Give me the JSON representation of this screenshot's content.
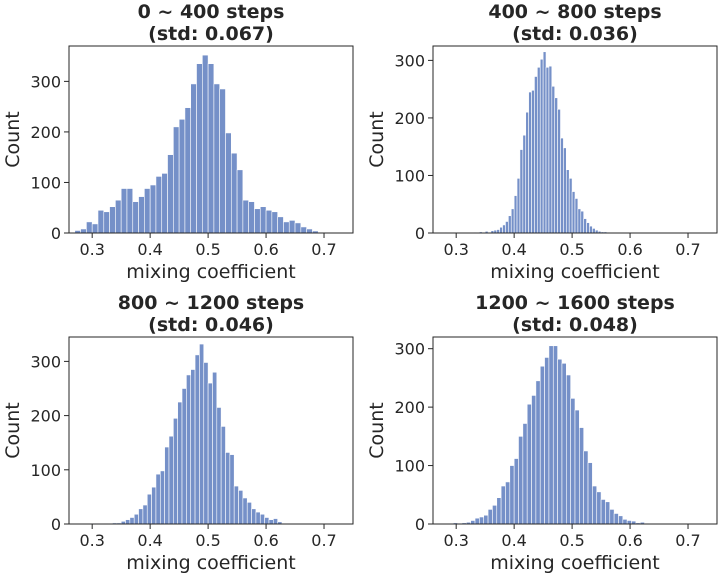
{
  "colors": {
    "bar": "#7590c8",
    "text": "#262626",
    "background": "#ffffff"
  },
  "chart_data": [
    {
      "type": "bar",
      "title": "0 ~ 400 steps",
      "subtitle": "(std: 0.067)",
      "xlabel": "mixing coefficient",
      "ylabel": "Count",
      "xlim": [
        0.26,
        0.75
      ],
      "ylim": [
        0,
        370
      ],
      "xticks": [
        0.3,
        0.4,
        0.5,
        0.6,
        0.7
      ],
      "xtick_labels": [
        "0.3",
        "0.4",
        "0.5",
        "0.6",
        "0.7"
      ],
      "yticks": [
        0,
        100,
        200,
        300
      ],
      "ytick_labels": [
        "0",
        "100",
        "200",
        "300"
      ],
      "bin_start": 0.27,
      "bin_width": 0.01,
      "values": [
        5,
        8,
        22,
        18,
        45,
        42,
        52,
        65,
        88,
        88,
        62,
        72,
        88,
        95,
        112,
        118,
        155,
        210,
        225,
        248,
        295,
        335,
        352,
        335,
        295,
        285,
        198,
        158,
        125,
        65,
        62,
        48,
        52,
        45,
        42,
        32,
        22,
        25,
        20,
        12,
        8,
        4
      ]
    },
    {
      "type": "bar",
      "title": "400 ~ 800 steps",
      "subtitle": "(std: 0.036)",
      "xlabel": "mixing coefficient",
      "ylabel": "Count",
      "xlim": [
        0.26,
        0.75
      ],
      "ylim": [
        0,
        325
      ],
      "xticks": [
        0.3,
        0.4,
        0.5,
        0.6,
        0.7
      ],
      "xtick_labels": [
        "0.3",
        "0.4",
        "0.5",
        "0.6",
        "0.7"
      ],
      "yticks": [
        0,
        100,
        200,
        300
      ],
      "ytick_labels": [
        "0",
        "100",
        "200",
        "300"
      ],
      "bin_start": 0.28,
      "bin_width": 0.005,
      "values": [
        1,
        0,
        0,
        0,
        0,
        0,
        0,
        0,
        0,
        0,
        1,
        0,
        2,
        0,
        3,
        0,
        4,
        5,
        6,
        10,
        14,
        20,
        30,
        42,
        65,
        95,
        145,
        170,
        210,
        245,
        248,
        272,
        288,
        302,
        315,
        288,
        290,
        255,
        235,
        215,
        165,
        148,
        110,
        95,
        72,
        60,
        42,
        38,
        25,
        18,
        12,
        8,
        5,
        3,
        2,
        2,
        1
      ]
    },
    {
      "type": "bar",
      "title": "800 ~ 1200 steps",
      "subtitle": "(std: 0.046)",
      "xlabel": "mixing coefficient",
      "ylabel": "Count",
      "xlim": [
        0.26,
        0.75
      ],
      "ylim": [
        0,
        345
      ],
      "xticks": [
        0.3,
        0.4,
        0.5,
        0.6,
        0.7
      ],
      "xtick_labels": [
        "0.3",
        "0.4",
        "0.5",
        "0.6",
        "0.7"
      ],
      "yticks": [
        0,
        100,
        200,
        300
      ],
      "ytick_labels": [
        "0",
        "100",
        "200",
        "300"
      ],
      "bin_start": 0.305,
      "bin_width": 0.0075,
      "values": [
        1,
        0,
        1,
        0,
        2,
        2,
        5,
        8,
        12,
        18,
        28,
        35,
        55,
        68,
        92,
        98,
        142,
        162,
        195,
        225,
        250,
        275,
        285,
        312,
        332,
        298,
        260,
        280,
        215,
        180,
        132,
        128,
        70,
        62,
        48,
        40,
        28,
        22,
        18,
        12,
        8,
        10,
        4,
        1,
        1
      ]
    },
    {
      "type": "bar",
      "title": "1200 ~ 1600 steps",
      "subtitle": "(std: 0.048)",
      "xlabel": "mixing coefficient",
      "ylabel": "Count",
      "xlim": [
        0.26,
        0.75
      ],
      "ylim": [
        0,
        320
      ],
      "xticks": [
        0.3,
        0.4,
        0.5,
        0.6,
        0.7
      ],
      "xtick_labels": [
        "0.3",
        "0.4",
        "0.5",
        "0.6",
        "0.7"
      ],
      "yticks": [
        0,
        100,
        200,
        300
      ],
      "ytick_labels": [
        "0",
        "100",
        "200",
        "300"
      ],
      "bin_start": 0.295,
      "bin_width": 0.0075,
      "values": [
        2,
        1,
        2,
        3,
        6,
        10,
        12,
        15,
        25,
        32,
        45,
        65,
        72,
        100,
        112,
        150,
        172,
        205,
        220,
        245,
        270,
        285,
        305,
        305,
        282,
        275,
        255,
        215,
        195,
        165,
        125,
        105,
        65,
        55,
        42,
        38,
        25,
        18,
        14,
        8,
        6,
        5,
        2,
        3,
        1
      ]
    }
  ]
}
